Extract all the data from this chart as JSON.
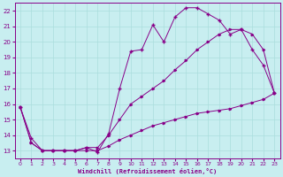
{
  "xlabel": "Windchill (Refroidissement éolien,°C)",
  "bg_color": "#c8eef0",
  "line_color": "#880088",
  "grid_color": "#aadddd",
  "ylim": [
    12.5,
    22.5
  ],
  "xlim": [
    -0.5,
    23.5
  ],
  "yticks": [
    13,
    14,
    15,
    16,
    17,
    18,
    19,
    20,
    21,
    22
  ],
  "xticks": [
    0,
    1,
    2,
    3,
    4,
    5,
    6,
    7,
    8,
    9,
    10,
    11,
    12,
    13,
    14,
    15,
    16,
    17,
    18,
    19,
    20,
    21,
    22,
    23
  ],
  "series1_x": [
    0,
    1,
    2,
    3,
    4,
    5,
    6,
    7,
    8,
    9,
    10,
    11,
    12,
    13,
    14,
    15,
    16,
    17,
    18,
    19,
    20,
    21,
    22,
    23
  ],
  "series1_y": [
    15.8,
    13.8,
    13.0,
    13.0,
    13.0,
    13.0,
    13.2,
    12.9,
    14.1,
    17.0,
    19.4,
    19.5,
    21.1,
    20.0,
    21.6,
    22.2,
    22.2,
    21.8,
    21.4,
    20.5,
    20.8,
    19.5,
    18.5,
    16.7
  ],
  "series2_x": [
    0,
    1,
    2,
    3,
    4,
    5,
    6,
    7,
    8,
    9,
    10,
    11,
    12,
    13,
    14,
    15,
    16,
    17,
    18,
    19,
    20,
    21,
    22,
    23
  ],
  "series2_y": [
    15.8,
    13.5,
    13.0,
    13.0,
    13.0,
    13.0,
    13.2,
    13.2,
    14.0,
    15.0,
    16.0,
    16.5,
    17.0,
    17.5,
    18.2,
    18.8,
    19.5,
    20.0,
    20.5,
    20.8,
    20.8,
    20.5,
    19.5,
    16.7
  ],
  "series3_x": [
    0,
    1,
    2,
    3,
    4,
    5,
    6,
    7,
    8,
    9,
    10,
    11,
    12,
    13,
    14,
    15,
    16,
    17,
    18,
    19,
    20,
    21,
    22,
    23
  ],
  "series3_y": [
    15.8,
    13.5,
    13.0,
    13.0,
    13.0,
    13.0,
    13.0,
    13.0,
    13.3,
    13.7,
    14.0,
    14.3,
    14.6,
    14.8,
    15.0,
    15.2,
    15.4,
    15.5,
    15.6,
    15.7,
    15.9,
    16.1,
    16.3,
    16.7
  ]
}
